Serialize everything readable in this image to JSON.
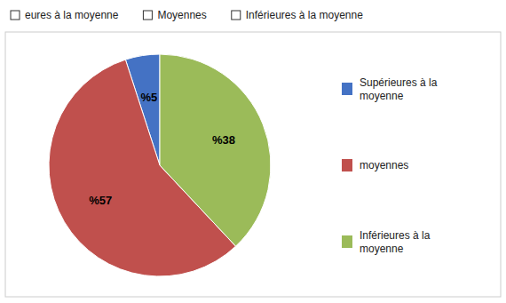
{
  "chart_data": {
    "type": "pie",
    "annotations": [
      "eures à la moyenne",
      "Moyennes",
      "Inférieures à la moyenne"
    ],
    "categories": [
      "Supérieures à la\nmoyenne",
      "moyennes",
      "Inférieures à la\nmoyenne"
    ],
    "values": [
      5,
      57,
      38
    ],
    "value_labels": [
      "%5",
      "%57",
      "%38"
    ],
    "colors": [
      "#4472C4",
      "#C0504D",
      "#9BBB59"
    ],
    "data_labels": true,
    "legend": "right"
  }
}
